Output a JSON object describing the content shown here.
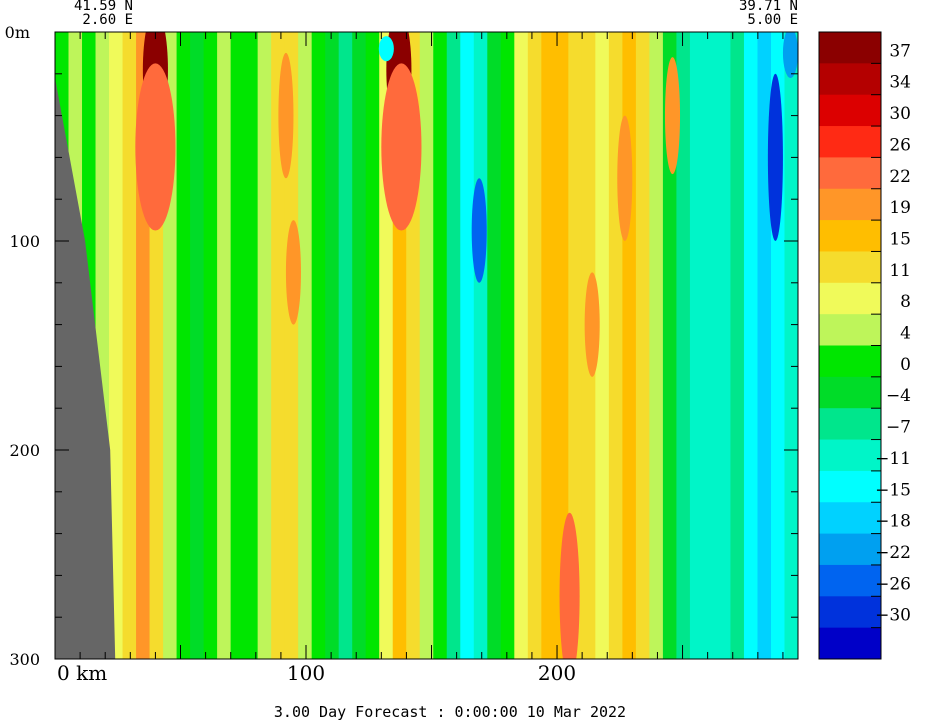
{
  "chart_data": {
    "type": "heatmap",
    "title": "",
    "footer": "3.00 Day Forecast :  0:00:00  10 Mar 2022",
    "left_corner": {
      "lat": "41.59 N",
      "lon": "2.60 E"
    },
    "right_corner": {
      "lat": "39.71 N",
      "lon": "5.00 E"
    },
    "x_axis": {
      "ticks": [
        0,
        100,
        200
      ],
      "tick_labels": [
        "0 km",
        "100",
        "200"
      ],
      "range": [
        0,
        296
      ]
    },
    "y_axis": {
      "ticks": [
        0,
        100,
        200,
        300
      ],
      "tick_labels": [
        "0m",
        "100",
        "200",
        "300"
      ],
      "range": [
        0,
        300
      ],
      "inverted": true
    },
    "colorbar": {
      "levels": [
        "37",
        "34",
        "30",
        "26",
        "22",
        "19",
        "15",
        "11",
        "8",
        "4",
        "0",
        "−4",
        "−7",
        "−11",
        "−15",
        "−18",
        "−22",
        "−26",
        "−30"
      ],
      "colors": [
        "#8b0000",
        "#b40000",
        "#dc0000",
        "#ff2a14",
        "#ff6a3c",
        "#ff9628",
        "#ffbe00",
        "#f5dc2d",
        "#f0fa5a",
        "#bef55a",
        "#00e600",
        "#00dc28",
        "#00e68c",
        "#00f5c8",
        "#00ffff",
        "#00d2ff",
        "#00a0f0",
        "#0064f0",
        "#0032dc",
        "#0000c8"
      ]
    },
    "bathymetry": {
      "land_color": "#666666",
      "profile": [
        [
          0,
          22
        ],
        [
          12,
          100
        ],
        [
          22,
          200
        ],
        [
          24,
          300
        ]
      ]
    },
    "columns": [
      {
        "x": 3,
        "v": 2
      },
      {
        "x": 8,
        "v": 6
      },
      {
        "x": 13,
        "v": 1
      },
      {
        "x": 19,
        "v": 4
      },
      {
        "x": 24,
        "v": 9
      },
      {
        "x": 30,
        "v": 13
      },
      {
        "x": 35,
        "v": 19
      },
      {
        "x": 41,
        "v": 14
      },
      {
        "x": 46,
        "v": 7
      },
      {
        "x": 51,
        "v": 2
      },
      {
        "x": 57,
        "v": -2
      },
      {
        "x": 62,
        "v": 1
      },
      {
        "x": 67,
        "v": 5
      },
      {
        "x": 73,
        "v": 3
      },
      {
        "x": 78,
        "v": 0
      },
      {
        "x": 83,
        "v": 5
      },
      {
        "x": 89,
        "v": 11
      },
      {
        "x": 94,
        "v": 14
      },
      {
        "x": 99,
        "v": 7
      },
      {
        "x": 105,
        "v": 1
      },
      {
        "x": 110,
        "v": -2
      },
      {
        "x": 116,
        "v": -5
      },
      {
        "x": 121,
        "v": -3
      },
      {
        "x": 126,
        "v": 2
      },
      {
        "x": 132,
        "v": 9
      },
      {
        "x": 137,
        "v": 18
      },
      {
        "x": 143,
        "v": 12
      },
      {
        "x": 148,
        "v": 6
      },
      {
        "x": 153,
        "v": 1
      },
      {
        "x": 159,
        "v": -7
      },
      {
        "x": 164,
        "v": -14
      },
      {
        "x": 170,
        "v": -9
      },
      {
        "x": 175,
        "v": -3
      },
      {
        "x": 180,
        "v": 3
      },
      {
        "x": 186,
        "v": 9
      },
      {
        "x": 191,
        "v": 14
      },
      {
        "x": 197,
        "v": 18
      },
      {
        "x": 202,
        "v": 15
      },
      {
        "x": 207,
        "v": 12
      },
      {
        "x": 213,
        "v": 11
      },
      {
        "x": 218,
        "v": 10
      },
      {
        "x": 223,
        "v": 12
      },
      {
        "x": 229,
        "v": 15
      },
      {
        "x": 234,
        "v": 11
      },
      {
        "x": 240,
        "v": 5
      },
      {
        "x": 245,
        "v": -1
      },
      {
        "x": 250,
        "v": -6
      },
      {
        "x": 256,
        "v": -9
      },
      {
        "x": 261,
        "v": -11
      },
      {
        "x": 267,
        "v": -8
      },
      {
        "x": 272,
        "v": -5
      },
      {
        "x": 277,
        "v": -12
      },
      {
        "x": 283,
        "v": -18
      },
      {
        "x": 288,
        "v": -14
      },
      {
        "x": 293,
        "v": -9
      }
    ],
    "hotspots": [
      {
        "x": 40,
        "y": 18,
        "v": 38,
        "rx": 5,
        "ry": 28
      },
      {
        "x": 40,
        "y": 55,
        "v": 24,
        "rx": 8,
        "ry": 40
      },
      {
        "x": 137,
        "y": 18,
        "v": 38,
        "rx": 5,
        "ry": 28
      },
      {
        "x": 138,
        "y": 55,
        "v": 24,
        "rx": 8,
        "ry": 40
      },
      {
        "x": 92,
        "y": 40,
        "v": 21,
        "rx": 3,
        "ry": 30
      },
      {
        "x": 95,
        "y": 115,
        "v": 20,
        "rx": 3,
        "ry": 25
      },
      {
        "x": 169,
        "y": 95,
        "v": -24,
        "rx": 3,
        "ry": 25
      },
      {
        "x": 287,
        "y": 60,
        "v": -28,
        "rx": 3,
        "ry": 40
      },
      {
        "x": 293,
        "y": 10,
        "v": -22,
        "rx": 3,
        "ry": 12
      },
      {
        "x": 205,
        "y": 270,
        "v": 22,
        "rx": 4,
        "ry": 40
      },
      {
        "x": 227,
        "y": 70,
        "v": 21,
        "rx": 3,
        "ry": 30
      },
      {
        "x": 246,
        "y": 40,
        "v": 21,
        "rx": 3,
        "ry": 28
      },
      {
        "x": 214,
        "y": 140,
        "v": 20,
        "rx": 3,
        "ry": 25
      },
      {
        "x": 132,
        "y": 8,
        "v": -14,
        "rx": 3,
        "ry": 6
      },
      {
        "x": 75,
        "y": 10,
        "v": 2,
        "rx": 4,
        "ry": 10
      }
    ]
  }
}
